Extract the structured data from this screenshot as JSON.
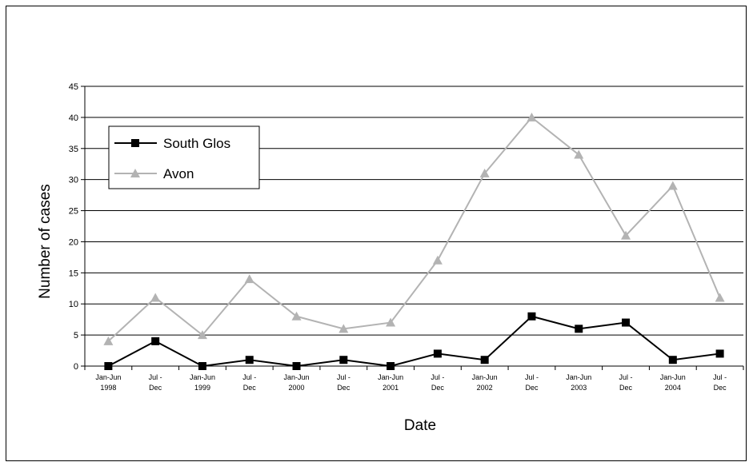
{
  "chart_data": {
    "type": "line",
    "title": "",
    "xlabel": "Date",
    "ylabel": "Number of cases",
    "ylim": [
      0,
      45
    ],
    "yticks": [
      0,
      5,
      10,
      15,
      20,
      25,
      30,
      35,
      40,
      45
    ],
    "grid": "horizontal",
    "legend_position": "top-left",
    "categories": [
      [
        "Jan-Jun",
        "1998"
      ],
      [
        "Jul -",
        "Dec"
      ],
      [
        "Jan-Jun",
        "1999"
      ],
      [
        "Jul -",
        "Dec"
      ],
      [
        "Jan-Jun",
        "2000"
      ],
      [
        "Jul -",
        "Dec"
      ],
      [
        "Jan-Jun",
        "2001"
      ],
      [
        "Jul -",
        "Dec"
      ],
      [
        "Jan-Jun",
        "2002"
      ],
      [
        "Jul -",
        "Dec"
      ],
      [
        "Jan-Jun",
        "2003"
      ],
      [
        "Jul -",
        "Dec"
      ],
      [
        "Jan-Jun",
        "2004"
      ],
      [
        "Jul -",
        "Dec"
      ]
    ],
    "series": [
      {
        "name": "South Glos",
        "marker": "square",
        "color": "#000000",
        "values": [
          0,
          4,
          0,
          1,
          0,
          1,
          0,
          2,
          1,
          8,
          6,
          7,
          1,
          2
        ]
      },
      {
        "name": "Avon",
        "marker": "triangle",
        "color": "#b3b3b3",
        "values": [
          4,
          11,
          5,
          14,
          8,
          6,
          7,
          17,
          31,
          40,
          34,
          21,
          29,
          11
        ]
      }
    ]
  }
}
